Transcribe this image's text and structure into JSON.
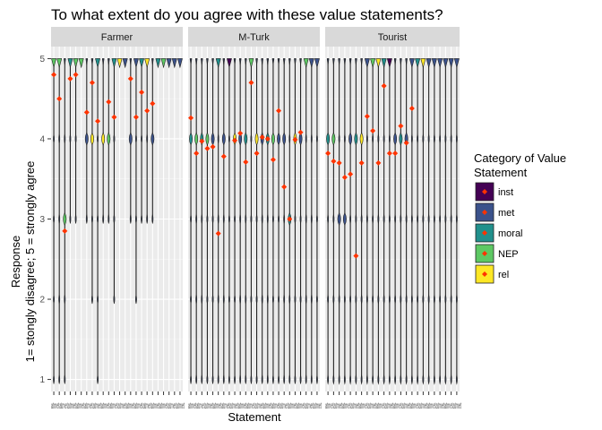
{
  "chart_data": {
    "type": "violin",
    "title": "To what extent do you agree with these value statements?",
    "xlabel": "Statement",
    "ylabel_line1": "Response",
    "ylabel_line2": "1= stongly disagree; 5 = strongly agree",
    "ylim": [
      0.85,
      5.15
    ],
    "yticks": [
      1,
      2,
      3,
      4,
      5
    ],
    "x_tick_text": "atmet",
    "panels": [
      {
        "name": "Farmer",
        "n_statements": 24,
        "categories": [
          "NEP",
          "NEP",
          "NEP",
          "moral",
          "NEP",
          "NEP",
          "met",
          "rel",
          "moral",
          "rel",
          "NEP",
          "moral",
          "rel",
          "met",
          "met",
          "met",
          "moral",
          "rel",
          "met",
          "moral",
          "NEP",
          "met",
          "met",
          "met"
        ],
        "means": [
          4.8,
          4.5,
          2.85,
          4.75,
          4.8,
          null,
          4.33,
          4.7,
          4.22,
          null,
          4.46,
          4.27,
          null,
          null,
          4.75,
          4.27,
          4.58,
          4.35,
          4.44,
          null,
          null,
          null,
          null,
          null
        ],
        "mins": [
          1,
          1,
          1,
          3,
          3,
          5,
          3,
          2,
          1,
          3,
          3,
          2,
          5,
          5,
          3,
          2,
          3,
          3,
          3,
          5,
          5,
          5,
          5,
          5
        ],
        "modes": [
          5,
          5,
          3,
          5,
          5,
          5,
          4,
          4,
          5,
          4,
          4,
          5,
          5,
          5,
          4,
          5,
          5,
          5,
          4,
          5,
          5,
          5,
          5,
          5
        ]
      },
      {
        "name": "M-Turk",
        "n_statements": 24,
        "categories": [
          "moral",
          "NEP",
          "moral",
          "NEP",
          "met",
          "moral",
          "met",
          "inst",
          "rel",
          "met",
          "moral",
          "NEP",
          "rel",
          "met",
          "moral",
          "NEP",
          "met",
          "met",
          "moral",
          "rel",
          "met",
          "NEP",
          "met",
          "met"
        ],
        "means": [
          4.26,
          3.82,
          3.97,
          3.88,
          3.9,
          2.82,
          3.78,
          null,
          3.98,
          4.07,
          3.71,
          4.7,
          3.82,
          4.02,
          4.0,
          3.74,
          4.35,
          3.4,
          3.0,
          3.99,
          4.08,
          null,
          null,
          null
        ],
        "mins": [
          1,
          1,
          1,
          1,
          1,
          1,
          1,
          1,
          1,
          1,
          1,
          1,
          1,
          1,
          1,
          1,
          1,
          1,
          1,
          1,
          1,
          1,
          1,
          1
        ],
        "modes": [
          4,
          4,
          4,
          4,
          4,
          5,
          4,
          5,
          4,
          4,
          4,
          5,
          4,
          4,
          4,
          4,
          4,
          4,
          3,
          4,
          4,
          5,
          5,
          5
        ]
      },
      {
        "name": "Tourist",
        "n_statements": 24,
        "categories": [
          "moral",
          "NEP",
          "met",
          "met",
          "met",
          "moral",
          "rel",
          "met",
          "NEP",
          "rel",
          "moral",
          "inst",
          "met",
          "moral",
          "met",
          "met",
          "moral",
          "rel",
          "met",
          "met",
          "met",
          "met",
          "met",
          "met"
        ],
        "means": [
          3.82,
          3.72,
          3.7,
          3.52,
          3.56,
          2.54,
          3.7,
          4.28,
          4.1,
          3.7,
          4.66,
          3.82,
          3.82,
          4.16,
          3.95,
          4.38,
          null,
          null,
          null,
          null,
          null,
          null,
          null,
          null
        ],
        "mins": [
          1,
          1,
          1,
          1,
          1,
          1,
          1,
          1,
          1,
          1,
          1,
          1,
          1,
          1,
          1,
          1,
          1,
          1,
          1,
          1,
          1,
          1,
          1,
          1
        ],
        "modes": [
          4,
          4,
          3,
          3,
          4,
          4,
          4,
          5,
          5,
          5,
          5,
          5,
          4,
          4,
          4,
          5,
          5,
          5,
          5,
          5,
          5,
          5,
          5,
          5
        ]
      }
    ],
    "legend": {
      "title_line1": "Category of Value",
      "title_line2": "Statement",
      "placement": "right",
      "items": [
        {
          "label": "inst",
          "color": "#440154"
        },
        {
          "label": "met",
          "color": "#3B528B"
        },
        {
          "label": "moral",
          "color": "#21908C"
        },
        {
          "label": "NEP",
          "color": "#5DC863"
        },
        {
          "label": "rel",
          "color": "#FDE725"
        }
      ]
    },
    "mean_point_color": "#FF3300",
    "panel_background": "#EBEBEB",
    "strip_background": "#D9D9D9",
    "grid": true
  }
}
